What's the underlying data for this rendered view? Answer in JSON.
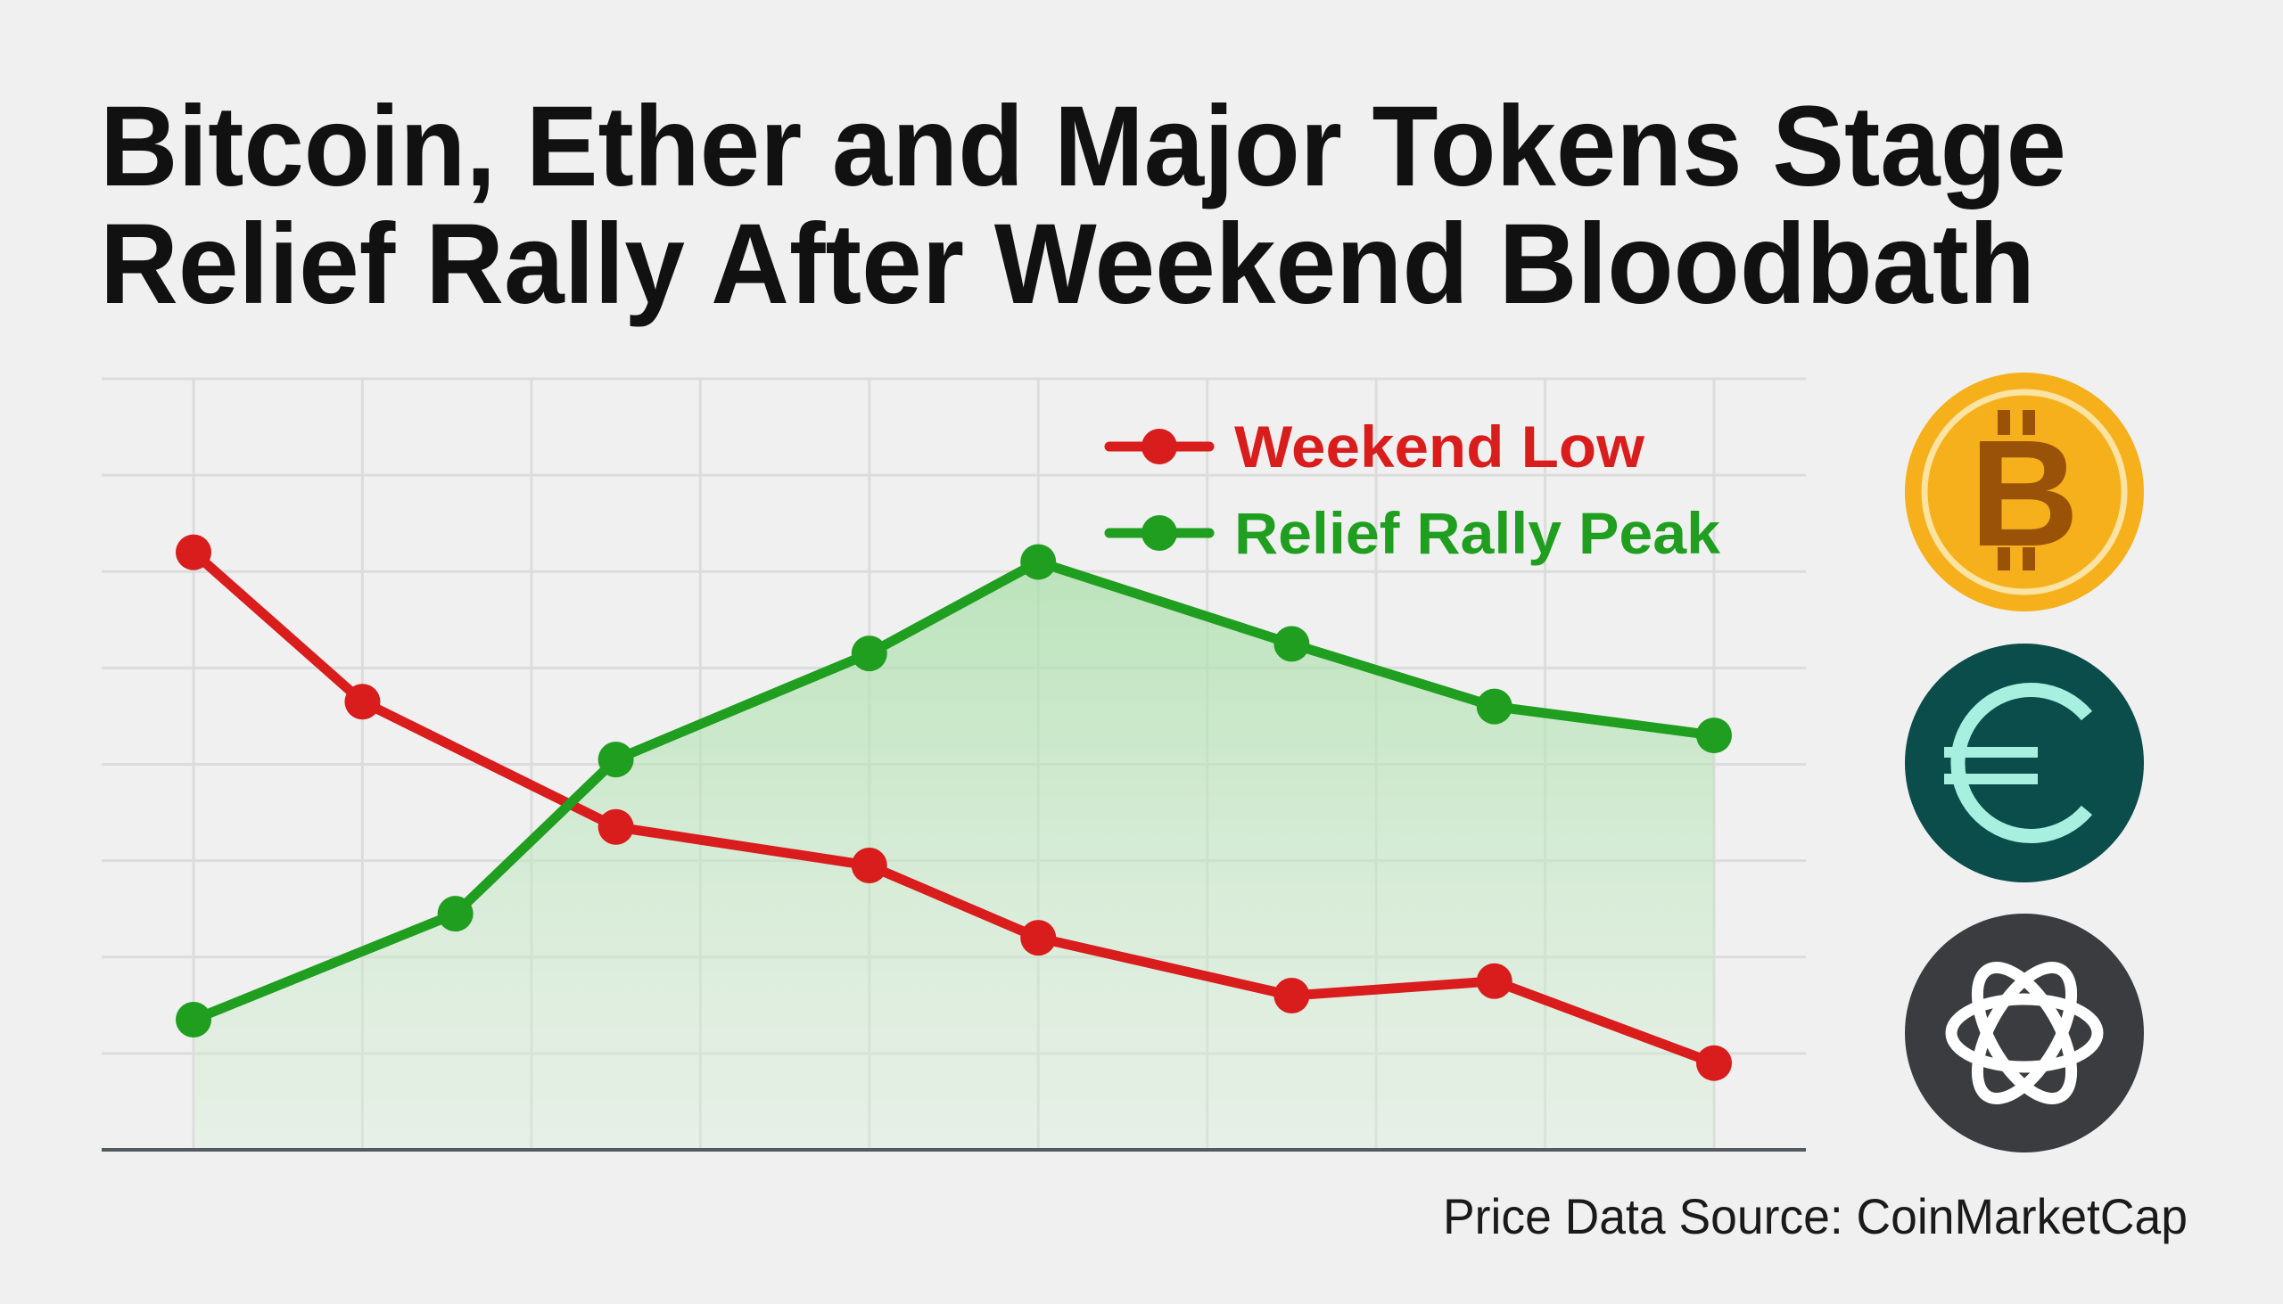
{
  "title": {
    "line1": "Bitcoin, Ether and Major Tokens Stage",
    "line2": "Relief Rally After Weekend Bloodbath"
  },
  "source_note": "Price Data Source: CoinMarketCap",
  "icons": [
    "bitcoin-icon",
    "euro-icon",
    "openai-icon"
  ],
  "colors": {
    "background": "#f0f0f0",
    "grid": "#dcdcdc",
    "axis": "#555a60",
    "weekend_low": "#d91c1c",
    "relief_rally": "#1f9e1f",
    "fill": "#b9e6b9",
    "bitcoin": "#f5b01c",
    "bitcoin_symbol": "#9a5208",
    "euro": "#0b4d4a",
    "euro_symbol": "#a7f0e0",
    "openai": "#3a3c40"
  },
  "chart_data": {
    "type": "line",
    "title": "",
    "xlabel": "",
    "ylabel": "",
    "xlim": [
      -0.5,
      9.5
    ],
    "ylim": [
      0,
      8
    ],
    "grid": true,
    "legend_position": "top-right",
    "series": [
      {
        "name": "Weekend Low",
        "color": "#d91c1c",
        "x": [
          0,
          1,
          2.5,
          4,
          5,
          6.5,
          7.7,
          9
        ],
        "y": [
          6.2,
          4.65,
          3.35,
          2.95,
          2.2,
          1.6,
          1.75,
          0.9
        ]
      },
      {
        "name": "Relief Rally Peak",
        "color": "#1f9e1f",
        "fill": true,
        "x": [
          0,
          1.55,
          2.5,
          4,
          5,
          6.5,
          7.7,
          9
        ],
        "y": [
          1.35,
          2.45,
          4.05,
          5.15,
          6.1,
          5.25,
          4.6,
          4.3
        ]
      }
    ]
  }
}
